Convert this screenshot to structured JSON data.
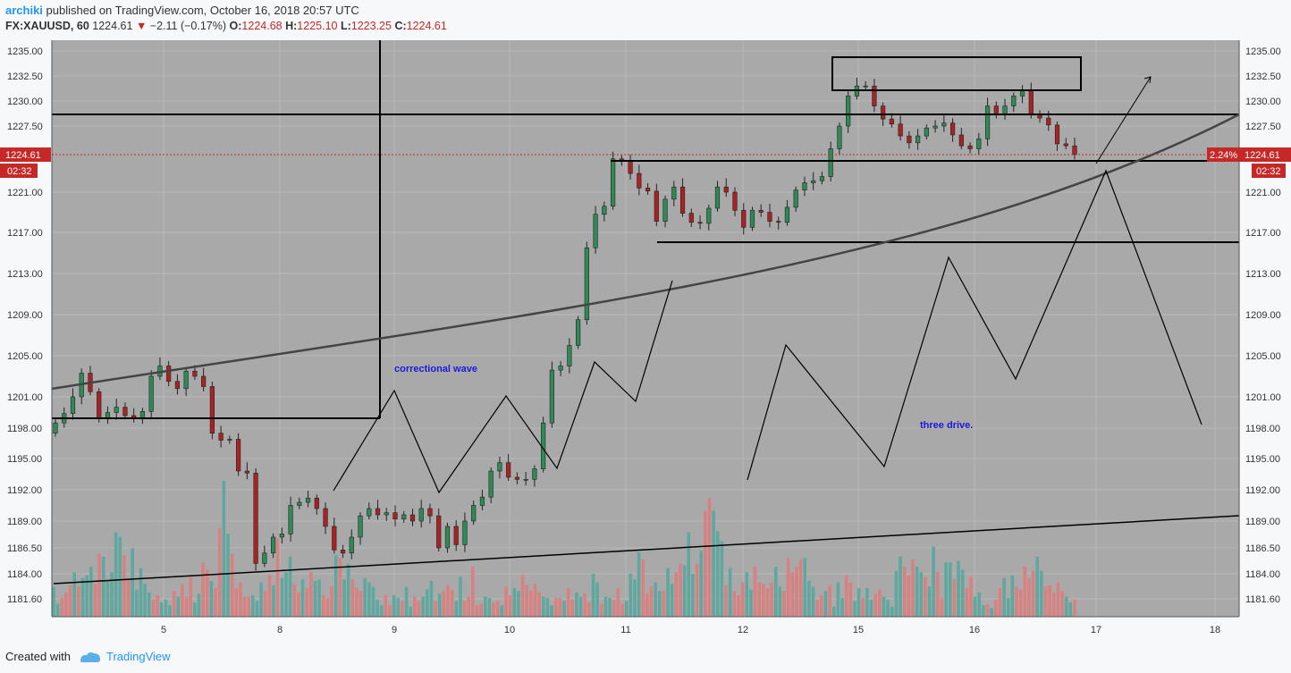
{
  "header": {
    "author": "archiki",
    "published": "published on TradingView.com, October 16, 2018 20:57 UTC",
    "symbol": "FX:XAUUSD, 60",
    "last": "1224.61",
    "change": "−2.11 (−0.17%)",
    "o_label": "O:",
    "o": "1224.68",
    "h_label": "H:",
    "h": "1225.10",
    "l_label": "L:",
    "l": "1223.25",
    "c_label": "C:",
    "c": "1224.61"
  },
  "footer": {
    "created_with": "Created with",
    "brand": "TradingView"
  },
  "colors": {
    "bg": "#a9a9a9",
    "up": "#2e8b57",
    "down": "#a82323",
    "vol_up": "#5fa8a0",
    "vol_down": "#d98080",
    "price_tag": "#c62828"
  },
  "chart_data": {
    "type": "candlestick",
    "symbol": "FX:XAUUSD",
    "interval": "60",
    "y_ticks": [
      "1235.00",
      "1232.50",
      "1230.00",
      "1227.50",
      "1224.61",
      "1221.00",
      "1217.00",
      "1213.00",
      "1209.00",
      "1205.00",
      "1201.00",
      "1198.00",
      "1195.00",
      "1192.00",
      "1189.00",
      "1186.50",
      "1184.00",
      "1181.60"
    ],
    "x_ticks": [
      "5",
      "8",
      "9",
      "10",
      "11",
      "12",
      "15",
      "16",
      "17",
      "18"
    ],
    "last_price": "1224.61",
    "countdown": "02:32",
    "percent_tag": "2.24%",
    "annotations": [
      "correctional wave",
      "three drive."
    ],
    "path": [
      [
        1198.5,
        1
      ],
      [
        1199.4,
        -1
      ],
      [
        1201.0,
        1
      ],
      [
        1203.3,
        1
      ],
      [
        1201.5,
        -1
      ],
      [
        1199.0,
        -1
      ],
      [
        1199.5,
        1
      ],
      [
        1200.0,
        1
      ],
      [
        1199.2,
        -1
      ],
      [
        1199.0,
        -1
      ],
      [
        1199.6,
        1
      ],
      [
        1203.0,
        1
      ],
      [
        1204.0,
        1
      ],
      [
        1202.5,
        -1
      ],
      [
        1201.8,
        -1
      ],
      [
        1203.5,
        1
      ],
      [
        1203.0,
        -1
      ],
      [
        1202.0,
        -1
      ],
      [
        1197.5,
        -1
      ],
      [
        1196.8,
        -1
      ],
      [
        1196.9,
        1
      ],
      [
        1193.8,
        -1
      ],
      [
        1193.6,
        -1
      ],
      [
        1185.0,
        -1
      ],
      [
        1186.0,
        1
      ],
      [
        1187.5,
        1
      ],
      [
        1187.8,
        1
      ],
      [
        1190.5,
        1
      ],
      [
        1190.8,
        1
      ],
      [
        1191.2,
        1
      ],
      [
        1190.2,
        -1
      ],
      [
        1188.5,
        -1
      ],
      [
        1186.3,
        -1
      ],
      [
        1186.0,
        -1
      ],
      [
        1187.5,
        1
      ],
      [
        1189.5,
        1
      ],
      [
        1190.2,
        1
      ],
      [
        1189.6,
        -1
      ],
      [
        1189.8,
        1
      ],
      [
        1189.2,
        -1
      ],
      [
        1189.6,
        1
      ],
      [
        1189.0,
        -1
      ],
      [
        1190.2,
        1
      ],
      [
        1189.5,
        -1
      ],
      [
        1186.5,
        -1
      ],
      [
        1188.5,
        1
      ],
      [
        1186.8,
        -1
      ],
      [
        1189.0,
        1
      ],
      [
        1190.5,
        1
      ],
      [
        1191.3,
        1
      ],
      [
        1193.8,
        1
      ],
      [
        1194.6,
        1
      ],
      [
        1193.2,
        -1
      ],
      [
        1193.0,
        -1
      ],
      [
        1193.0,
        1
      ],
      [
        1194.0,
        1
      ],
      [
        1198.5,
        1
      ],
      [
        1203.6,
        1
      ],
      [
        1204.0,
        1
      ],
      [
        1206.0,
        1
      ],
      [
        1208.5,
        1
      ],
      [
        1215.5,
        1
      ],
      [
        1218.8,
        1
      ],
      [
        1219.6,
        1
      ],
      [
        1224.2,
        1
      ],
      [
        1224.0,
        -1
      ],
      [
        1222.8,
        -1
      ],
      [
        1221.4,
        -1
      ],
      [
        1221.1,
        -1
      ],
      [
        1218.1,
        -1
      ],
      [
        1220.3,
        1
      ],
      [
        1221.5,
        1
      ],
      [
        1218.9,
        -1
      ],
      [
        1218.0,
        -1
      ],
      [
        1217.9,
        -1
      ],
      [
        1219.4,
        1
      ],
      [
        1221.5,
        1
      ],
      [
        1221.0,
        -1
      ],
      [
        1219.2,
        -1
      ],
      [
        1217.5,
        -1
      ],
      [
        1219.2,
        1
      ],
      [
        1219.0,
        -1
      ],
      [
        1218.1,
        -1
      ],
      [
        1218.0,
        -1
      ],
      [
        1219.5,
        1
      ],
      [
        1221.2,
        1
      ],
      [
        1221.9,
        1
      ],
      [
        1222.1,
        1
      ],
      [
        1222.5,
        1
      ],
      [
        1225.2,
        1
      ],
      [
        1227.5,
        1
      ],
      [
        1230.5,
        1
      ],
      [
        1231.5,
        1
      ],
      [
        1231.5,
        -1
      ],
      [
        1229.5,
        -1
      ],
      [
        1228.2,
        -1
      ],
      [
        1227.7,
        -1
      ],
      [
        1226.5,
        -1
      ],
      [
        1225.8,
        -1
      ],
      [
        1226.5,
        1
      ],
      [
        1227.3,
        1
      ],
      [
        1227.5,
        1
      ],
      [
        1227.8,
        1
      ],
      [
        1226.6,
        -1
      ],
      [
        1225.5,
        -1
      ],
      [
        1225.2,
        -1
      ],
      [
        1226.2,
        1
      ],
      [
        1229.5,
        1
      ],
      [
        1228.6,
        -1
      ],
      [
        1229.5,
        1
      ],
      [
        1230.5,
        1
      ],
      [
        1231.0,
        1
      ],
      [
        1228.6,
        -1
      ],
      [
        1228.3,
        -1
      ],
      [
        1227.6,
        -1
      ],
      [
        1225.7,
        -1
      ],
      [
        1225.5,
        -1
      ],
      [
        1224.61,
        -1
      ]
    ],
    "volumes": [
      0.21,
      0.09,
      0.13,
      0.17,
      0.22,
      0.31,
      0.21,
      0.27,
      0.29,
      0.35,
      0.23,
      0.44,
      0.42,
      0.25,
      0.31,
      0.59,
      0.56,
      0.43,
      0.26,
      0.48,
      0.19,
      0.34,
      0.23,
      0.17,
      0.12,
      0.15,
      0.1,
      0.12,
      0.08,
      0.18,
      0.14,
      0.23,
      0.14,
      0.28,
      0.1,
      0.16,
      0.38,
      0.33,
      0.25,
      0.2,
      0.62,
      0.95,
      0.58,
      0.44,
      0.2,
      0.24,
      0.14,
      0.14,
      0.15,
      0.11,
      0.24,
      0.18,
      0.29,
      0.22,
      0.55,
      0.27,
      0.31,
      0.42,
      0.23,
      0.17,
      0.26,
      0.2,
      0.31,
      0.25,
      0.26,
      0.15,
      0.13,
      0.21,
      0.43,
      0.41,
      0.26,
      0.37,
      0.26,
      0.2,
      0.18,
      0.27,
      0.24,
      0.21,
      0.12,
      0.08,
      0.15,
      0.08,
      0.15,
      0.13,
      0.11,
      0.21,
      0.07,
      0.14,
      0.11,
      0.14,
      0.19,
      0.25,
      0.11,
      0.16,
      0.18,
      0.22,
      0.19,
      0.11,
      0.28,
      0.11,
      0.14,
      0.35,
      0.08,
      0.09,
      0.14,
      0.13,
      0.1,
      0.11,
      0.08,
      0.21,
      0.15,
      0.2,
      0.18,
      0.29,
      0.22,
      0.18,
      0.23,
      0.17,
      0.14,
      0.13,
      0.08,
      0.13,
      0.13,
      0.11,
      0.2,
      0.12,
      0.17,
      0.14,
      0.16,
      0.1,
      0.3,
      0.24,
      0.09,
      0.14,
      0.13,
      0.12,
      0.2,
      0.09,
      0.11,
      0.3,
      0.26,
      0.45,
      0.4,
      0.16,
      0.21,
      0.24,
      0.18,
      0.18,
      0.34,
      0.23,
      0.31,
      0.37,
      0.36,
      0.59,
      0.3,
      0.37,
      0.46,
      0.74,
      0.83,
      0.74,
      0.6,
      0.53,
      0.22,
      0.34,
      0.18,
      0.15,
      0.24,
      0.31,
      0.19,
      0.35,
      0.24,
      0.23,
      0.2,
      0.24,
      0.35,
      0.21,
      0.18,
      0.41,
      0.31,
      0.35,
      0.4,
      0.41,
      0.25,
      0.21,
      0.12,
      0.15,
      0.18,
      0.22,
      0.07,
      0.24,
      0.13,
      0.29,
      0.24,
      0.11,
      0.2,
      0.13,
      0.2,
      0.12,
      0.16,
      0.19,
      0.14,
      0.12,
      0.07,
      0.32,
      0.42,
      0.35,
      0.29,
      0.4,
      0.35,
      0.31,
      0.28,
      0.21,
      0.49,
      0.31,
      0.13,
      0.38,
      0.38,
      0.26,
      0.39,
      0.33,
      0.2,
      0.28,
      0.14,
      0.17,
      0.08,
      0.09,
      0.06,
      0.12,
      0.2,
      0.27,
      0.13,
      0.29,
      0.21,
      0.19,
      0.35,
      0.27,
      0.32,
      0.42,
      0.32,
      0.21,
      0.22,
      0.17,
      0.24,
      0.18,
      0.14,
      0.1,
      0.12
    ]
  }
}
